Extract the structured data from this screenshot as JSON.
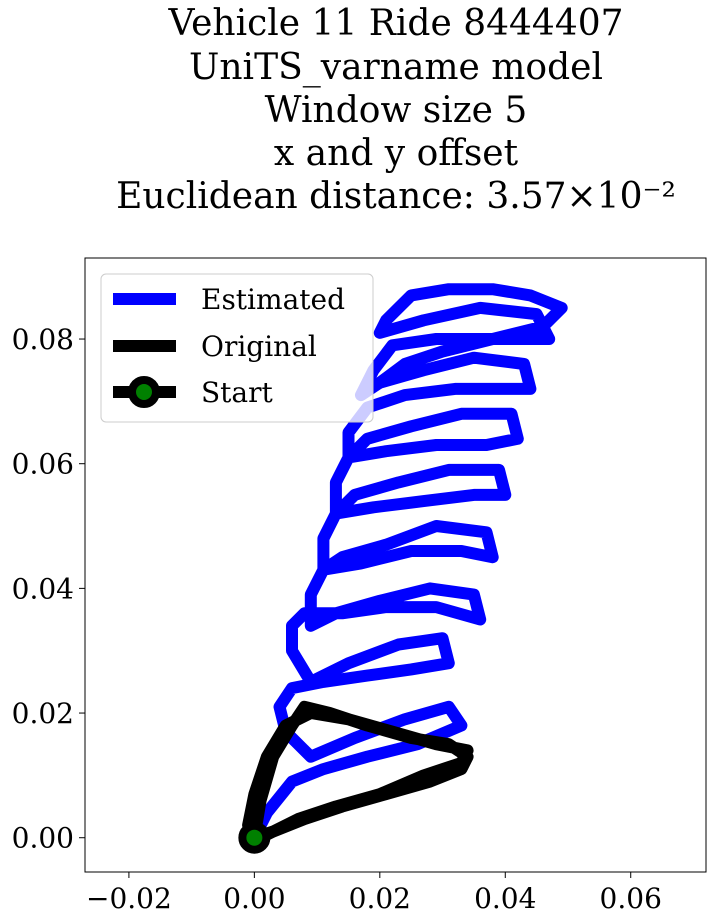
{
  "chart_data": {
    "type": "line",
    "title_lines": [
      "Vehicle 11 Ride 8444407",
      "UniTS_varname model",
      "Window size 5",
      "x and y offset",
      "Euclidean distance: 3.57×10⁻²"
    ],
    "xlabel": "",
    "ylabel": "",
    "xlim": [
      -0.027,
      0.072
    ],
    "ylim": [
      -0.0055,
      0.093
    ],
    "xticks": [
      -0.02,
      0.0,
      0.02,
      0.04,
      0.06
    ],
    "xtick_labels": [
      "−0.02",
      "0.00",
      "0.02",
      "0.04",
      "0.06"
    ],
    "yticks": [
      0.0,
      0.02,
      0.04,
      0.06,
      0.08
    ],
    "ytick_labels": [
      "0.00",
      "0.02",
      "0.04",
      "0.06",
      "0.08"
    ],
    "grid": false,
    "legend_position": "upper-left",
    "legend": [
      "Estimated",
      "Original",
      "Start"
    ],
    "series": [
      {
        "name": "Estimated",
        "color": "#0000ff",
        "x": [
          0.0,
          0.002,
          0.006,
          0.011,
          0.018,
          0.026,
          0.033,
          0.031,
          0.024,
          0.016,
          0.009,
          0.005,
          0.004,
          0.006,
          0.011,
          0.018,
          0.025,
          0.031,
          0.03,
          0.023,
          0.015,
          0.009,
          0.006,
          0.006,
          0.008,
          0.014,
          0.021,
          0.029,
          0.036,
          0.035,
          0.028,
          0.02,
          0.013,
          0.009,
          0.009,
          0.011,
          0.017,
          0.025,
          0.033,
          0.038,
          0.037,
          0.029,
          0.021,
          0.014,
          0.011,
          0.011,
          0.013,
          0.019,
          0.027,
          0.035,
          0.04,
          0.039,
          0.031,
          0.023,
          0.016,
          0.013,
          0.013,
          0.015,
          0.021,
          0.029,
          0.037,
          0.042,
          0.041,
          0.033,
          0.025,
          0.018,
          0.015,
          0.015,
          0.018,
          0.024,
          0.032,
          0.04,
          0.044,
          0.043,
          0.035,
          0.027,
          0.02,
          0.017,
          0.019,
          0.022,
          0.029,
          0.037,
          0.044,
          0.047,
          0.045,
          0.036,
          0.027,
          0.02,
          0.021,
          0.025,
          0.031,
          0.038,
          0.044,
          0.049,
          0.046,
          0.038,
          0.03,
          0.024,
          0.02
        ],
        "y": [
          0.0,
          0.004,
          0.009,
          0.011,
          0.013,
          0.015,
          0.018,
          0.021,
          0.019,
          0.016,
          0.013,
          0.017,
          0.021,
          0.024,
          0.025,
          0.026,
          0.027,
          0.028,
          0.032,
          0.031,
          0.028,
          0.025,
          0.03,
          0.034,
          0.036,
          0.036,
          0.037,
          0.037,
          0.035,
          0.039,
          0.04,
          0.038,
          0.036,
          0.034,
          0.039,
          0.043,
          0.044,
          0.046,
          0.046,
          0.045,
          0.049,
          0.05,
          0.047,
          0.045,
          0.043,
          0.048,
          0.052,
          0.053,
          0.054,
          0.055,
          0.055,
          0.059,
          0.059,
          0.057,
          0.055,
          0.052,
          0.057,
          0.061,
          0.062,
          0.063,
          0.063,
          0.064,
          0.068,
          0.068,
          0.066,
          0.064,
          0.061,
          0.065,
          0.069,
          0.071,
          0.072,
          0.072,
          0.072,
          0.076,
          0.077,
          0.075,
          0.073,
          0.071,
          0.075,
          0.079,
          0.08,
          0.08,
          0.08,
          0.08,
          0.084,
          0.085,
          0.083,
          0.081,
          0.083,
          0.087,
          0.088,
          0.088,
          0.087,
          0.085,
          0.082,
          0.08,
          0.078,
          0.076,
          0.073
        ]
      },
      {
        "name": "Original",
        "color": "#000000",
        "x": [
          0.0,
          0.001,
          0.003,
          0.006,
          0.008,
          0.012,
          0.018,
          0.025,
          0.031,
          0.034,
          0.033,
          0.028,
          0.021,
          0.014,
          0.008,
          0.003,
          0.0,
          -0.001,
          0.0,
          0.002,
          0.005,
          0.009,
          0.015,
          0.022,
          0.029,
          0.034,
          0.033,
          0.027,
          0.02,
          0.013,
          0.007,
          0.003,
          0.001,
          0.0
        ],
        "y": [
          0.0,
          0.006,
          0.013,
          0.018,
          0.021,
          0.02,
          0.018,
          0.016,
          0.015,
          0.013,
          0.011,
          0.009,
          0.007,
          0.005,
          0.003,
          0.001,
          0.0,
          0.002,
          0.007,
          0.013,
          0.018,
          0.02,
          0.019,
          0.017,
          0.015,
          0.014,
          0.012,
          0.01,
          0.007,
          0.005,
          0.003,
          0.001,
          0.0,
          0.0
        ]
      }
    ],
    "start_point": {
      "x": 0.0,
      "y": 0.0,
      "fill": "#008000",
      "edge": "#000000"
    }
  }
}
